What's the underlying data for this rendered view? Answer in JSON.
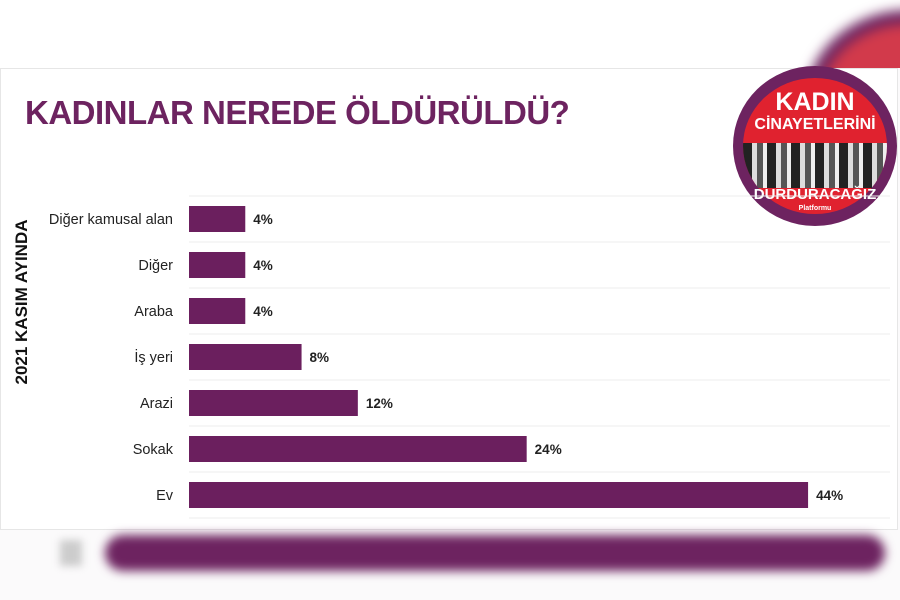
{
  "chart_data": {
    "type": "bar",
    "orientation": "horizontal",
    "title": "KADINLAR NEREDE ÖLDÜRÜLDÜ?",
    "ylabel": "2021 KASIM AYINDA",
    "xlabel": "",
    "categories": [
      "Diğer kamusal alan",
      "Diğer",
      "Araba",
      "İş yeri",
      "Arazi",
      "Sokak",
      "Ev"
    ],
    "values": [
      4,
      4,
      4,
      8,
      12,
      24,
      44
    ],
    "value_labels": [
      "4%",
      "4%",
      "4%",
      "8%",
      "12%",
      "24%",
      "44%"
    ],
    "unit": "%",
    "xlim": [
      0,
      50
    ],
    "grid": true,
    "bar_color": "#6b1f5e"
  },
  "logo": {
    "line1": "KADIN",
    "line2": "CİNAYETLERİNİ",
    "line3": "DURDURACAĞIZ",
    "line4": "Platformu"
  },
  "colors": {
    "title": "#6d2360",
    "logo_red": "#e0222f"
  }
}
